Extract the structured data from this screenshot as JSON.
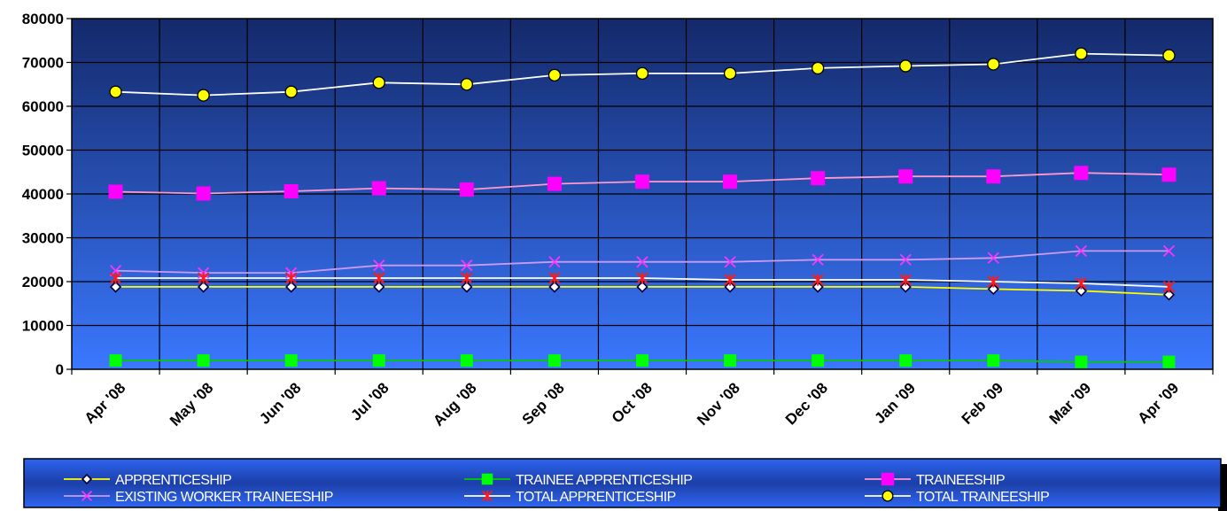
{
  "chart_data": {
    "type": "line",
    "categories": [
      "Apr '08",
      "May '08",
      "Jun '08",
      "Jul '08",
      "Aug '08",
      "Sep '08",
      "Oct '08",
      "Nov '08",
      "Dec '08",
      "Jan '09",
      "Feb '09",
      "Mar '09",
      "Apr '09"
    ],
    "ylim": [
      0,
      80000
    ],
    "yticks": [
      "0",
      "10000",
      "20000",
      "30000",
      "40000",
      "50000",
      "60000",
      "70000",
      "80000"
    ],
    "grid": true,
    "legend_position": "bottom",
    "series": [
      {
        "name": "APPRENTICESHIP",
        "color": "#ffff00",
        "marker": "diamond",
        "values": [
          18800,
          18800,
          18800,
          18800,
          18800,
          18800,
          18800,
          18800,
          18800,
          18800,
          18300,
          17900,
          17000
        ]
      },
      {
        "name": "TRAINEE APPRENTICESHIP",
        "color": "#00cc00",
        "marker": "square-green",
        "values": [
          2000,
          2000,
          2000,
          2000,
          2000,
          2000,
          2000,
          2000,
          2000,
          2000,
          2000,
          1700,
          1700
        ]
      },
      {
        "name": "TRAINEESHIP",
        "color": "#ff99cc",
        "marker": "square-magenta",
        "values": [
          40500,
          40100,
          40600,
          41300,
          41000,
          42300,
          42800,
          42800,
          43600,
          44000,
          44000,
          44800,
          44400
        ]
      },
      {
        "name": "EXISTING WORKER TRAINEESHIP",
        "color": "#cc99ff",
        "marker": "x",
        "values": [
          22500,
          22000,
          22000,
          23700,
          23700,
          24500,
          24500,
          24500,
          25000,
          25000,
          25400,
          27000,
          27000
        ]
      },
      {
        "name": "TOTAL APPRENTICESHIP",
        "color": "#ffffff",
        "marker": "star",
        "values": [
          20800,
          20800,
          20800,
          20800,
          20800,
          20800,
          20800,
          20400,
          20400,
          20400,
          20000,
          19600,
          18800
        ]
      },
      {
        "name": "TOTAL TRAINEESHIP",
        "color": "#ffffff",
        "marker": "circle",
        "values": [
          63300,
          62500,
          63300,
          65400,
          65000,
          67100,
          67500,
          67500,
          68700,
          69200,
          69600,
          72000,
          71600
        ]
      }
    ]
  }
}
